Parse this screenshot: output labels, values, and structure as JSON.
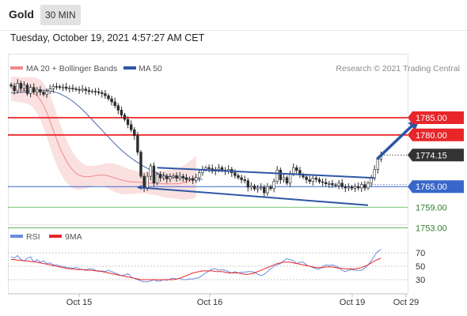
{
  "header": {
    "title": "Gold",
    "timeframe": "30 MIN",
    "datetime": "Tuesday, October 19, 2021 4:57:27 AM CET"
  },
  "colors": {
    "candle": "#2c2c2c",
    "bollinger_band": "#f7c6c6",
    "ma20": "#f08a8a",
    "ma50": "#4a67a8",
    "resistance": "#e8262a",
    "support_blue": "#3867c9",
    "support_green": "#7bc47b",
    "channel": "#2e56a6",
    "arrow": "#2e56a6",
    "rsi": "#6a8be0",
    "rsi_ma": "#e8262a"
  },
  "chart_data": [
    {
      "type": "line",
      "title": "",
      "legend": [
        {
          "name": "MA 20 + Bollinger Bands",
          "color": "#f08a8a"
        },
        {
          "name": "MA 50",
          "color": "#2e56a6"
        }
      ],
      "legend_placement": "top-left",
      "source": "Research © 2021 Trading Central",
      "x_ticks": [
        "Oct 15",
        "Oct 16",
        "Oct 19",
        "Oct 29"
      ],
      "current_price": "1774.15",
      "levels": [
        {
          "value": "1785.00",
          "kind": "resistance",
          "color": "#e8262a"
        },
        {
          "value": "1780.00",
          "kind": "resistance",
          "color": "#e8262a"
        },
        {
          "value": "1765.00",
          "kind": "pivot",
          "color": "#3867c9"
        },
        {
          "value": "1759.00",
          "kind": "support",
          "color": "#7bc47b"
        },
        {
          "value": "1753.00",
          "kind": "support",
          "color": "#7bc47b"
        }
      ],
      "close": [
        1794.2,
        1792.8,
        1795,
        1793.5,
        1794.5,
        1792,
        1793.8,
        1792.5,
        1793.2,
        1792.4,
        1791.8,
        1792.6,
        1793.4,
        1794.1,
        1794,
        1793.8,
        1793.9,
        1793.5,
        1793.6,
        1793.4,
        1793.2,
        1793,
        1793.3,
        1792.9,
        1792.6,
        1792.7,
        1792.5,
        1792.3,
        1792,
        1791.4,
        1790.5,
        1789.6,
        1788.5,
        1787.2,
        1785.8,
        1784.5,
        1783,
        1781.5,
        1779.8,
        1775,
        1768,
        1764.5,
        1768,
        1771,
        1766,
        1768.5,
        1767.5,
        1768,
        1767.2,
        1767.8,
        1768.2,
        1767.4,
        1768,
        1767.6,
        1767,
        1767.3,
        1766.8,
        1767.6,
        1769,
        1770,
        1770.5,
        1770.2,
        1769.5,
        1770,
        1770.5,
        1769.8,
        1769.4,
        1770,
        1769,
        1768.2,
        1767.6,
        1767,
        1766.7,
        1764.8,
        1765.2,
        1764.3,
        1764.6,
        1764.8,
        1763.2,
        1765,
        1764.4,
        1766.5,
        1769.8,
        1767,
        1767.6,
        1766,
        1768.8,
        1770.5,
        1769.7,
        1768.4,
        1767.8,
        1767,
        1766.5,
        1767.5,
        1767.1,
        1766.4,
        1766.2,
        1765.8,
        1765.9,
        1765.5,
        1765.3,
        1766,
        1765,
        1764.6,
        1764.9,
        1764.5,
        1765,
        1764.6,
        1765.6,
        1764.6,
        1766,
        1767.5,
        1770,
        1773,
        1774.15
      ],
      "ma50": [
        1792.3,
        1792.1,
        1792.3,
        1792.4,
        1792.4,
        1792.5,
        1792.6,
        1792.7,
        1792.8,
        1793,
        1793,
        1793,
        1792.8,
        1792.6,
        1792.3,
        1792,
        1791.5,
        1791,
        1790.4,
        1789.8,
        1789,
        1788.2,
        1787.3,
        1786.4,
        1785.4,
        1784.4,
        1783.4,
        1782.4,
        1781.4,
        1780.4,
        1779.4,
        1778.4,
        1777.4,
        1776.5,
        1775.6,
        1774.8,
        1774,
        1773.3,
        1772.6,
        1772,
        1771.4,
        1770.8,
        1770.3,
        1769.8,
        1769.3,
        1768.9,
        1768.6,
        1768.3,
        1768.1,
        1767.9,
        1767.8,
        1767.7,
        1767.6,
        1767.5,
        1767.4,
        1767.3,
        1767.3,
        1767.2,
        1767.2,
        1767.1
      ],
      "ma20": [
        1793.5,
        1793.3,
        1793.2,
        1793.1,
        1793,
        1792.9,
        1792.7,
        1792.2,
        1791.4,
        1790.2,
        1788.6,
        1786.5,
        1784,
        1781.4,
        1778.8,
        1776.4,
        1774.3,
        1772.5,
        1771,
        1769.8,
        1768.9,
        1768.3,
        1768,
        1767.9,
        1767.9,
        1768,
        1768.2,
        1768.3,
        1768.4,
        1768.3,
        1768.1,
        1767.8,
        1767.5,
        1767.2,
        1766.9,
        1766.7,
        1766.5,
        1766.4,
        1766.3,
        1766.3,
        1766.2,
        1766.2,
        1766.1,
        1766,
        1766,
        1766,
        1765.9,
        1765.8,
        1765.8,
        1765.8,
        1765.8,
        1765.8,
        1765.9,
        1766.1,
        1766.4,
        1766.8,
        1767.3,
        1767.9
      ],
      "bollinger_upper": [
        1797,
        1796.9,
        1796.8,
        1796.7,
        1796.7,
        1796.7,
        1796.8,
        1796.7,
        1796.5,
        1796,
        1795,
        1793.5,
        1791.5,
        1789,
        1786.2,
        1783.5,
        1781,
        1778.8,
        1776.8,
        1775,
        1773.6,
        1772.5,
        1771.7,
        1771.2,
        1771,
        1771,
        1771.1,
        1771.3,
        1771.5,
        1771.7,
        1771.8,
        1771.8,
        1771.6,
        1771.3,
        1771,
        1770.6,
        1770.2,
        1769.9,
        1769.7,
        1769.5,
        1769.4,
        1769.3,
        1769.3,
        1769.3,
        1769.4,
        1769.5,
        1769.6,
        1769.7,
        1769.8,
        1769.9,
        1770,
        1770.2,
        1770.5,
        1771,
        1771.6,
        1772.3,
        1773.1,
        1774
      ],
      "bollinger_lower": [
        1790,
        1789.7,
        1789.6,
        1789.5,
        1789.3,
        1789.1,
        1788.6,
        1787.7,
        1786.3,
        1784.4,
        1782.2,
        1779.5,
        1776.5,
        1773.8,
        1771.4,
        1769.3,
        1767.6,
        1766.2,
        1765.2,
        1764.6,
        1764.2,
        1764.1,
        1764.2,
        1764.4,
        1764.7,
        1765,
        1765.3,
        1765.3,
        1765.3,
        1764.9,
        1764.4,
        1763.8,
        1763.4,
        1763.1,
        1762.8,
        1762.8,
        1762.8,
        1762.9,
        1762.9,
        1763.1,
        1763,
        1763.1,
        1762.9,
        1762.7,
        1762.6,
        1762.5,
        1762.2,
        1761.9,
        1761.8,
        1761.7,
        1761.6,
        1761.4,
        1761.3,
        1761.2,
        1761.2,
        1761.3,
        1761.5,
        1761.8
      ],
      "channel_lines": [
        {
          "name": "upper",
          "from": {
            "bar": 45,
            "price": 1770.5
          },
          "to": {
            "bar": 112,
            "price": 1767.5
          }
        },
        {
          "name": "lower",
          "from": {
            "bar": 39,
            "price": 1764.8
          },
          "to": {
            "bar": 110,
            "price": 1759.6
          }
        }
      ],
      "projection_arrow": {
        "from": {
          "bar": 113,
          "price": 1773.2
        },
        "to": {
          "bar": 125,
          "price": 1783.8
        }
      }
    },
    {
      "type": "line",
      "title": "",
      "legend": [
        {
          "name": "RSI",
          "color": "#6a8be0"
        },
        {
          "name": "9MA",
          "color": "#e8262a"
        }
      ],
      "legend_placement": "top-left",
      "y_ticks": [
        "70",
        "50",
        "30"
      ],
      "ylim": [
        15,
        90
      ],
      "rsi": [
        64,
        62,
        66,
        60,
        58,
        62,
        64,
        56,
        60,
        56,
        58,
        54,
        55,
        52,
        52,
        50,
        50,
        48,
        48,
        47,
        48,
        46,
        45,
        45,
        46,
        46,
        44,
        42,
        43,
        42,
        44,
        42,
        40,
        38,
        36,
        37,
        39,
        34,
        32,
        30,
        28,
        27,
        27,
        28,
        30,
        28,
        28,
        30,
        29,
        31,
        32,
        31,
        32,
        30,
        30,
        31,
        31,
        32,
        33,
        37,
        40,
        43,
        46,
        46,
        44,
        45,
        44,
        42,
        40,
        42,
        40,
        41,
        41,
        42,
        42,
        41,
        38,
        36,
        38,
        42,
        46,
        50,
        52,
        54,
        58,
        61,
        60,
        58,
        54,
        56,
        56,
        52,
        50,
        48,
        46,
        46,
        50,
        52,
        51,
        52,
        50,
        48,
        44,
        42,
        44,
        45,
        44,
        44,
        44,
        47,
        52,
        58,
        66,
        72,
        75
      ],
      "rsi_ma": [
        60,
        60,
        59,
        59,
        58,
        58,
        57,
        57,
        56,
        55,
        54,
        53,
        52,
        51,
        50,
        49,
        48,
        47,
        46,
        46,
        45,
        45,
        45,
        44,
        44,
        44,
        43,
        43,
        42,
        41,
        40,
        39,
        38,
        37,
        36,
        35,
        34,
        33,
        32,
        31,
        30,
        30,
        30,
        30,
        30,
        30,
        30,
        30,
        30,
        30,
        30,
        31,
        32,
        34,
        36,
        38,
        40,
        41,
        42,
        43,
        43,
        43,
        43,
        42,
        42,
        42,
        41,
        40,
        40,
        40,
        40,
        39,
        38,
        38,
        39,
        40,
        42,
        44,
        46,
        48,
        50,
        52,
        54,
        55,
        56,
        56,
        56,
        55,
        54,
        53,
        52,
        51,
        50,
        49,
        48,
        48,
        48,
        49,
        49,
        49,
        48,
        47,
        47,
        46,
        46,
        46,
        46,
        47,
        48,
        50,
        52,
        55,
        58,
        60,
        62
      ]
    }
  ]
}
